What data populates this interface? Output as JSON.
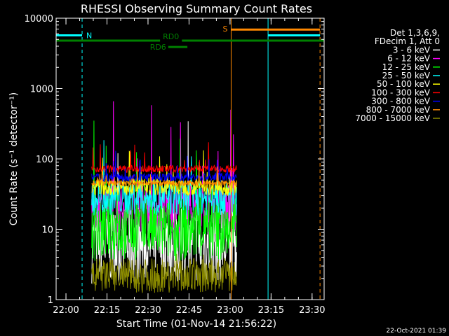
{
  "chart_data": {
    "type": "line",
    "title": "RHESSI Observing Summary Count Rates",
    "xlabel": "Start Time (01-Nov-14 21:56:22)",
    "ylabel": "Count Rate (s⁻¹ detector⁻¹)",
    "ylog": true,
    "ylim": [
      1,
      10000
    ],
    "xlim_minutes": [
      0,
      98
    ],
    "x_tick_labels": [
      "22:00",
      "22:15",
      "22:30",
      "22:45",
      "23:00",
      "23:15",
      "23:30"
    ],
    "x_tick_minutes": [
      3.6,
      18.6,
      33.6,
      48.6,
      63.6,
      78.6,
      93.6
    ],
    "y_tick_labels": [
      "1",
      "10",
      "100",
      "1000",
      "10000"
    ],
    "y_tick_values": [
      1,
      10,
      100,
      1000,
      10000
    ],
    "data_span_minutes": [
      13,
      66
    ],
    "legend_header": [
      "Det 1,3,6,9,",
      "FDecim 1, Att 0"
    ],
    "series": [
      {
        "name": "3 - 6 keV",
        "color": "#ffffff",
        "level": 6,
        "spread": 0.55,
        "spike": 0.9
      },
      {
        "name": "6 - 12 keV",
        "color": "#ff00ff",
        "level": 20,
        "spread": 0.35,
        "spike": 0.8
      },
      {
        "name": "12 - 25 keV",
        "color": "#00ff00",
        "level": 10,
        "spread": 0.45,
        "spike": 1.0
      },
      {
        "name": "25 - 50 keV",
        "color": "#00ffff",
        "level": 28,
        "spread": 0.25,
        "spike": 0.4
      },
      {
        "name": "50 - 100 keV",
        "color": "#ffff00",
        "level": 40,
        "spread": 0.12,
        "spike": 0.3
      },
      {
        "name": "100 - 300 keV",
        "color": "#ff0000",
        "level": 72,
        "spread": 0.05,
        "spike": 0.25
      },
      {
        "name": "300 - 800 keV",
        "color": "#0000ff",
        "level": 55,
        "spread": 0.06,
        "spike": 0.2
      },
      {
        "name": "800 - 7000 keV",
        "color": "#ff8800",
        "level": 45,
        "spread": 0.04,
        "spike": 0.15
      },
      {
        "name": "7000 - 15000 keV",
        "color": "#8b8b00",
        "level": 2.2,
        "spread": 0.25,
        "spike": 0.1
      }
    ],
    "annotations": [
      {
        "label": "N",
        "color": "#00ffff",
        "bar_minutes": [
          0,
          9.5
        ],
        "level": 5700,
        "line_minutes": 9.5,
        "dashed": true
      },
      {
        "label": "S",
        "color": "#ff8800",
        "bar_minutes": [
          64,
          96.5
        ],
        "level": 6900,
        "line_minutes": 64,
        "dashed": false
      },
      {
        "label": "RD0",
        "color": "#008000",
        "bar_minutes": [
          0,
          98
        ],
        "level": 4800
      },
      {
        "label": "RD6",
        "color": "#008000",
        "bar_minutes": [
          41,
          48
        ],
        "level": 3900
      }
    ],
    "vertical_markers": [
      {
        "minutes": 0,
        "color": "#00ffff",
        "dashed": false
      },
      {
        "minutes": 9.5,
        "color": "#00ffff",
        "dashed": true
      },
      {
        "minutes": 64,
        "color": "#ff8800",
        "dashed": false
      },
      {
        "minutes": 77.5,
        "color": "#00ffff",
        "dashed": false
      },
      {
        "minutes": 96.5,
        "color": "#ff8800",
        "dashed": true
      }
    ],
    "extra_bars": [
      {
        "color": "#00ffff",
        "bar_minutes": [
          77.5,
          96.5
        ],
        "level": 5700
      }
    ]
  },
  "footer_date": "22-Oct-2021 01:39"
}
